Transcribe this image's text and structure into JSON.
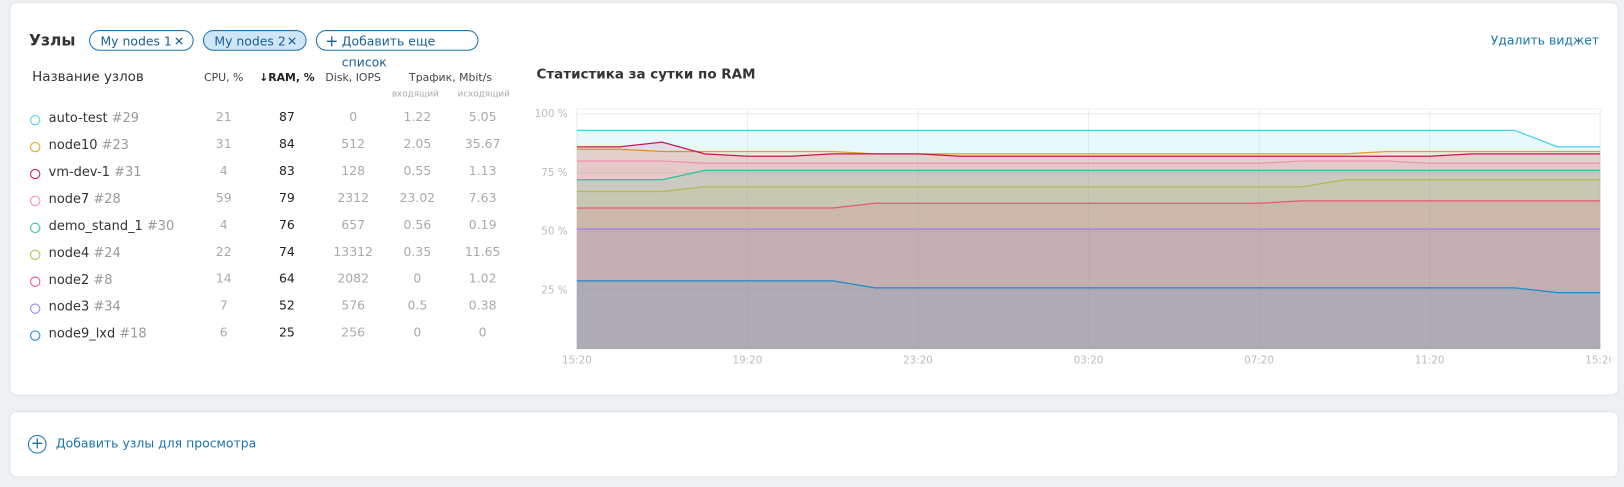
{
  "header": {
    "title": "Узлы",
    "tabs": [
      "My nodes 1",
      "My nodes 2"
    ],
    "add_list": "Добавить еще список",
    "delete": "Удалить виджет"
  },
  "table": {
    "columns": {
      "name": "Название узлов",
      "cpu": "CPU, %",
      "ram": "↓RAM, %",
      "disk": "Disk, IOPS",
      "traffic": "Трафик, Mbit/s",
      "traffic_in": "входящий",
      "traffic_out": "исходящий"
    },
    "rows": [
      {
        "name": "auto-test",
        "id": "#29",
        "color": "#4dd0e1",
        "cpu": 21,
        "ram": 87,
        "disk": 0,
        "in": 1.22,
        "out": 5.05
      },
      {
        "name": "node10",
        "id": "#23",
        "color": "#e0a21a",
        "cpu": 31,
        "ram": 84,
        "disk": 512,
        "in": 2.05,
        "out": 35.67
      },
      {
        "name": "vm-dev-1",
        "id": "#31",
        "color": "#c2185b",
        "cpu": 4,
        "ram": 83,
        "disk": 128,
        "in": 0.55,
        "out": 1.13
      },
      {
        "name": "node7",
        "id": "#28",
        "color": "#f48fb1",
        "cpu": 59,
        "ram": 79,
        "disk": 2312,
        "in": 23.02,
        "out": 7.63
      },
      {
        "name": "demo_stand_1",
        "id": "#30",
        "color": "#26c69a",
        "cpu": 4,
        "ram": 76,
        "disk": 657,
        "in": 0.56,
        "out": 0.19
      },
      {
        "name": "node4",
        "id": "#24",
        "color": "#b5b84a",
        "cpu": 22,
        "ram": 74,
        "disk": 13312,
        "in": 0.35,
        "out": 11.65
      },
      {
        "name": "node2",
        "id": "#8",
        "color": "#e8557a",
        "cpu": 14,
        "ram": 64,
        "disk": 2082,
        "in": 0,
        "out": 1.02
      },
      {
        "name": "node3",
        "id": "#34",
        "color": "#9c7cf0",
        "cpu": 7,
        "ram": 52,
        "disk": 576,
        "in": 0.5,
        "out": 0.38
      },
      {
        "name": "node9_lxd",
        "id": "#18",
        "color": "#1e88c8",
        "cpu": 6,
        "ram": 25,
        "disk": 256,
        "in": 0,
        "out": 0
      }
    ]
  },
  "chart_data": {
    "type": "area",
    "title": "Статистика за сутки по RAM",
    "x": [
      0,
      1,
      2,
      3,
      4,
      5,
      6,
      7,
      8,
      9,
      10,
      11,
      12,
      13,
      14,
      15,
      16,
      17,
      18,
      19,
      20,
      21,
      22,
      23,
      24
    ],
    "xlim": [
      0,
      24
    ],
    "xticks": [
      {
        "value": 0,
        "label": "15:20"
      },
      {
        "value": 4,
        "label": "19:20"
      },
      {
        "value": 8,
        "label": "23:20"
      },
      {
        "value": 12,
        "label": "03:20"
      },
      {
        "value": 16,
        "label": "07:20"
      },
      {
        "value": 20,
        "label": "11:20"
      },
      {
        "value": 24,
        "label": "15:20"
      }
    ],
    "ylim": [
      0,
      100
    ],
    "yticks": [
      {
        "value": 25,
        "label": "25 %"
      },
      {
        "value": 50,
        "label": "50 %"
      },
      {
        "value": 75,
        "label": "75 %"
      },
      {
        "value": 100,
        "label": "100 %"
      }
    ],
    "grid": true,
    "series": [
      {
        "color": "#4dd0e1",
        "values": [
          93,
          93,
          93,
          93,
          93,
          93,
          93,
          93,
          93,
          93,
          93,
          93,
          93,
          93,
          93,
          93,
          93,
          93,
          93,
          93,
          93,
          93,
          93,
          86,
          86
        ]
      },
      {
        "color": "#e0a21a",
        "values": [
          85,
          85,
          84,
          84,
          84,
          84,
          84,
          83,
          83,
          83,
          83,
          83,
          83,
          83,
          83,
          83,
          83,
          83,
          83,
          84,
          84,
          84,
          84,
          84,
          84
        ]
      },
      {
        "color": "#c2185b",
        "values": [
          86,
          86,
          88,
          83,
          82,
          82,
          83,
          83,
          83,
          82,
          82,
          82,
          82,
          82,
          82,
          82,
          82,
          82,
          82,
          82,
          82,
          83,
          83,
          83,
          83
        ]
      },
      {
        "color": "#f48fb1",
        "values": [
          80,
          80,
          80,
          79,
          79,
          79,
          79,
          79,
          79,
          79,
          79,
          79,
          79,
          79,
          79,
          79,
          79,
          80,
          80,
          80,
          79,
          79,
          79,
          79,
          79
        ]
      },
      {
        "color": "#26c69a",
        "values": [
          72,
          72,
          72,
          76,
          76,
          76,
          76,
          76,
          76,
          76,
          76,
          76,
          76,
          76,
          76,
          76,
          76,
          76,
          76,
          76,
          76,
          76,
          76,
          76,
          76
        ]
      },
      {
        "color": "#b5b84a",
        "values": [
          67,
          67,
          67,
          69,
          69,
          69,
          69,
          69,
          69,
          69,
          69,
          69,
          69,
          69,
          69,
          69,
          69,
          69,
          72,
          72,
          72,
          72,
          72,
          72,
          72
        ]
      },
      {
        "color": "#e8557a",
        "values": [
          60,
          60,
          60,
          60,
          60,
          60,
          60,
          62,
          62,
          62,
          62,
          62,
          62,
          62,
          62,
          62,
          62,
          63,
          63,
          63,
          63,
          63,
          63,
          63,
          63
        ]
      },
      {
        "color": "#9c7cf0",
        "values": [
          51,
          51,
          51,
          51,
          51,
          51,
          51,
          51,
          51,
          51,
          51,
          51,
          51,
          51,
          51,
          51,
          51,
          51,
          51,
          51,
          51,
          51,
          51,
          51,
          51
        ]
      },
      {
        "color": "#1e88c8",
        "values": [
          29,
          29,
          29,
          29,
          29,
          29,
          29,
          26,
          26,
          26,
          26,
          26,
          26,
          26,
          26,
          26,
          26,
          26,
          26,
          26,
          26,
          26,
          26,
          24,
          24
        ]
      }
    ]
  },
  "footer": {
    "add_nodes": "Добавить узлы для просмотра"
  }
}
